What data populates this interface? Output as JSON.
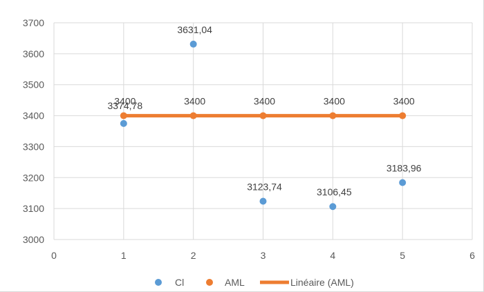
{
  "chart_data": {
    "type": "scatter",
    "title": "",
    "xlabel": "",
    "ylabel": "",
    "xlim": [
      0,
      6
    ],
    "ylim": [
      3000,
      3700
    ],
    "x_ticks": [
      0,
      1,
      2,
      3,
      4,
      5,
      6
    ],
    "y_ticks": [
      3000,
      3100,
      3200,
      3300,
      3400,
      3500,
      3600,
      3700
    ],
    "grid": true,
    "legend_position": "bottom",
    "series": [
      {
        "name": "Cl",
        "color": "#5b9bd5",
        "marker": "circle",
        "x": [
          1,
          2,
          3,
          4,
          5
        ],
        "y": [
          3374.78,
          3631.04,
          3123.74,
          3106.45,
          3183.96
        ],
        "labels": [
          "3374,78",
          "3631,04",
          "3123,74",
          "3106,45",
          "3183,96"
        ]
      },
      {
        "name": "AML",
        "color": "#ed7d31",
        "marker": "circle",
        "x": [
          1,
          2,
          3,
          4,
          5
        ],
        "y": [
          3400,
          3400,
          3400,
          3400,
          3400
        ],
        "labels": [
          "3400",
          "3400",
          "3400",
          "3400",
          "3400"
        ]
      }
    ],
    "trendline": {
      "name": "Linéaire (AML)",
      "color": "#ed7d31",
      "type": "linear"
    }
  }
}
